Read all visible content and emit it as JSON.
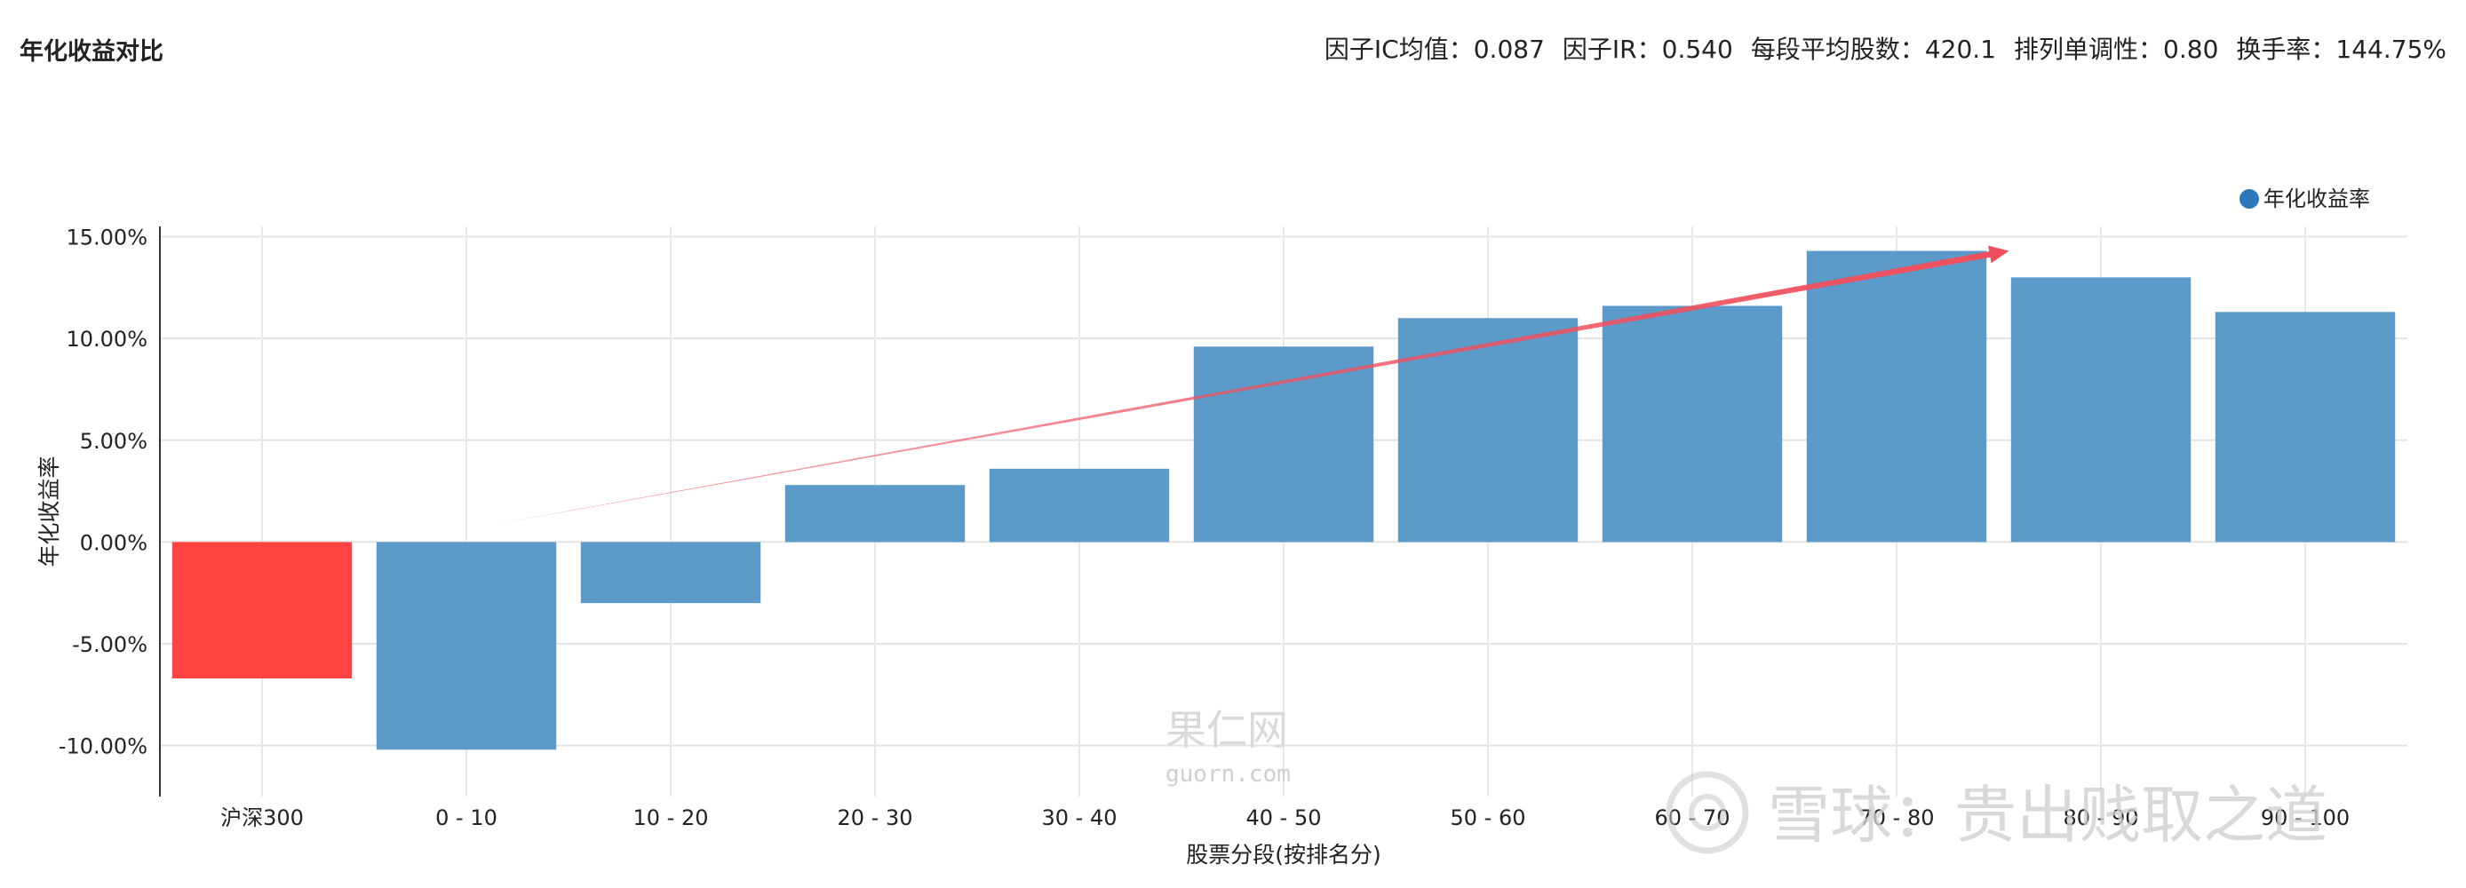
{
  "header": {
    "title": "年化收益对比",
    "stats": [
      {
        "label": "因子IC均值",
        "value": "0.087"
      },
      {
        "label": "因子IR",
        "value": "0.540"
      },
      {
        "label": "每段平均股数",
        "value": "420.1"
      },
      {
        "label": "排列单调性",
        "value": "0.80"
      },
      {
        "label": "换手率",
        "value": "144.75%"
      }
    ]
  },
  "chart_data": {
    "type": "bar",
    "title": "年化收益对比",
    "xlabel": "股票分段(按排名分)",
    "ylabel": "年化收益率",
    "categories": [
      "沪深300",
      "0 - 10",
      "10 - 20",
      "20 - 30",
      "30 - 40",
      "40 - 50",
      "50 - 60",
      "60 - 70",
      "70 - 80",
      "80 - 90",
      "90 - 100"
    ],
    "series": [
      {
        "name": "年化收益率",
        "values": [
          -6.7,
          -10.2,
          -3.0,
          2.8,
          3.6,
          9.6,
          11.0,
          11.6,
          14.3,
          13.0,
          11.3
        ],
        "colors": [
          "#ff4242",
          "#5b9ac9",
          "#5b9ac9",
          "#5b9ac9",
          "#5b9ac9",
          "#5b9ac9",
          "#5b9ac9",
          "#5b9ac9",
          "#5b9ac9",
          "#5b9ac9",
          "#5b9ac9"
        ]
      }
    ],
    "ylim": [
      -12.5,
      15.5
    ],
    "yticks": [
      -10,
      -5,
      0,
      5,
      10,
      15
    ],
    "ytick_labels": [
      "-10.00%",
      "-5.00%",
      "0.00%",
      "5.00%",
      "10.00%",
      "15.00%"
    ],
    "grid": true,
    "legend": {
      "position": "top-right",
      "label": "年化收益率",
      "color": "#2a78b8"
    },
    "trend_arrow": {
      "from_category": "0 - 10",
      "from_value": 0.8,
      "to_category": "80 - 90",
      "to_value": 14.3,
      "color": "#f0505e"
    },
    "watermark": {
      "logo_text": "果仁网",
      "logo_url": "guorn.com",
      "caption": "雪球：贵出贱取之道"
    }
  }
}
